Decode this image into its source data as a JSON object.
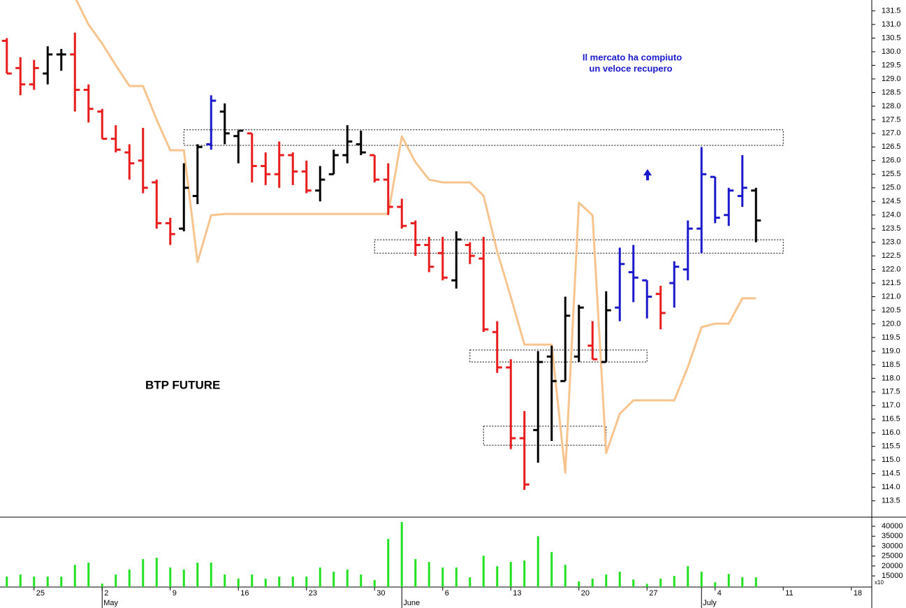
{
  "chart_data": {
    "type": "ohlc",
    "title": "BTP FUTURE",
    "annotations": [
      "Il mercato ha compiuto",
      "un veloce recupero"
    ],
    "categories": [
      null,
      null,
      "25",
      null,
      null,
      null,
      null,
      "2",
      null,
      null,
      null,
      null,
      "9",
      null,
      null,
      null,
      null,
      "16",
      null,
      null,
      null,
      null,
      "23",
      null,
      null,
      null,
      null,
      "30",
      null,
      null,
      null,
      null,
      "6",
      null,
      null,
      null,
      null,
      "13",
      null,
      null,
      null,
      null,
      "20",
      null,
      null,
      null,
      null,
      "27",
      null,
      null,
      null,
      null,
      "4",
      null,
      null,
      null,
      null,
      "11",
      null,
      null,
      null,
      null,
      "18",
      null
    ],
    "months": [
      null,
      null,
      null,
      null,
      null,
      null,
      null,
      "May",
      null,
      null,
      null,
      null,
      null,
      null,
      null,
      null,
      null,
      null,
      null,
      null,
      null,
      null,
      null,
      null,
      null,
      null,
      null,
      null,
      null,
      "June",
      null,
      null,
      null,
      null,
      null,
      null,
      null,
      null,
      null,
      null,
      null,
      null,
      null,
      null,
      null,
      null,
      null,
      null,
      null,
      null,
      null,
      "July",
      null,
      null,
      null,
      null,
      null,
      null,
      null,
      null,
      null,
      null,
      null,
      null
    ],
    "ylim": [
      112.9,
      131.9
    ],
    "yticks": [
      113.5,
      {
        "value": 114,
        "label": "114.0"
      },
      114.5,
      {
        "value": 115,
        "label": "115.0"
      },
      115.5,
      {
        "value": 116,
        "label": "116.0"
      },
      116.5,
      {
        "value": 117,
        "label": "117.0"
      },
      117.5,
      {
        "value": 118,
        "label": "118.0"
      },
      118.5,
      {
        "value": 119,
        "label": "119.0"
      },
      119.5,
      {
        "value": 120,
        "label": "120.0"
      },
      120.5,
      {
        "value": 121,
        "label": "121.0"
      },
      121.5,
      {
        "value": 122,
        "label": "122.0"
      },
      122.5,
      {
        "value": 123,
        "label": "123.0"
      },
      123.5,
      {
        "value": 124,
        "label": "124.0"
      },
      124.5,
      {
        "value": 125,
        "label": "125.0"
      },
      125.5,
      {
        "value": 126,
        "label": "126.0"
      },
      126.5,
      {
        "value": 127,
        "label": "127.0"
      },
      127.5,
      {
        "value": 128,
        "label": "128.0"
      },
      128.5,
      {
        "value": 129,
        "label": "129.0"
      },
      129.5,
      {
        "value": 130,
        "label": "130.0"
      },
      130.5,
      {
        "value": 131,
        "label": "131.0"
      },
      131.5
    ],
    "y2lim": [
      9400,
      44600
    ],
    "y2ticks": [
      15000,
      20000,
      25000,
      30000,
      35000,
      40000
    ],
    "y2_unit": "x10",
    "ohlc": {
      "open": [
        130.4,
        129.4,
        128.8,
        129.2,
        129.9,
        129.9,
        128.6,
        127.8,
        126.8,
        126.3,
        126.0,
        125.2,
        123.7,
        123.5,
        124.7,
        126.6,
        127.8,
        126.9,
        127.0,
        125.8,
        125.5,
        126.2,
        125.6,
        124.9,
        125.5,
        126.2,
        126.6,
        126.2,
        125.3,
        124.3,
        123.7,
        122.9,
        122.6,
        121.6,
        122.9,
        122.4,
        119.7,
        118.4,
        115.8,
        116.1,
        118.8,
        117.9,
        118.8,
        119.2,
        118.6,
        120.6,
        121.9,
        121.6,
        121.1,
        121.5,
        122.0,
        123.5,
        125.4,
        124.0,
        124.7,
        124.9,
        null,
        null,
        null,
        null,
        null,
        null,
        null,
        null
      ],
      "high": [
        130.5,
        129.8,
        129.7,
        130.2,
        130.1,
        130.7,
        128.8,
        127.9,
        127.3,
        126.6,
        127.2,
        125.3,
        123.9,
        125.9,
        126.6,
        128.4,
        128.1,
        127.1,
        127.0,
        126.3,
        126.7,
        126.3,
        126.0,
        125.8,
        126.4,
        127.3,
        127.1,
        126.2,
        125.9,
        124.6,
        123.8,
        123.2,
        123.2,
        123.4,
        123.0,
        123.2,
        120.1,
        118.7,
        116.8,
        119.0,
        119.2,
        121.0,
        120.7,
        120.1,
        121.2,
        122.8,
        122.9,
        121.6,
        121.4,
        122.3,
        123.8,
        126.5,
        125.4,
        125.0,
        126.2,
        125.0,
        null,
        null,
        null,
        null,
        null,
        null,
        null,
        null
      ],
      "low": [
        129.2,
        128.4,
        128.6,
        128.8,
        129.3,
        127.8,
        127.4,
        126.8,
        126.3,
        125.3,
        124.8,
        123.5,
        122.9,
        123.4,
        124.4,
        126.4,
        126.6,
        125.9,
        125.2,
        125.1,
        125.0,
        125.1,
        124.8,
        124.5,
        125.5,
        125.9,
        126.2,
        125.2,
        124.0,
        123.5,
        122.5,
        121.9,
        121.6,
        121.3,
        122.2,
        119.7,
        118.2,
        115.4,
        113.9,
        114.9,
        115.7,
        117.9,
        118.6,
        118.7,
        118.6,
        120.1,
        120.8,
        120.2,
        119.8,
        120.6,
        121.6,
        122.6,
        123.7,
        123.6,
        124.3,
        123.0,
        null,
        null,
        null,
        null,
        null,
        null,
        null,
        null
      ],
      "close": [
        129.2,
        128.8,
        129.4,
        129.9,
        129.9,
        128.6,
        127.9,
        126.8,
        126.4,
        125.9,
        125.0,
        123.7,
        123.3,
        125.0,
        126.5,
        128.2,
        127.0,
        127.1,
        125.8,
        125.5,
        126.2,
        125.6,
        124.9,
        125.3,
        126.2,
        126.7,
        126.3,
        125.3,
        124.3,
        123.6,
        122.9,
        122.1,
        121.7,
        123.1,
        122.5,
        119.8,
        118.4,
        115.8,
        114.1,
        118.6,
        117.9,
        120.3,
        120.6,
        118.7,
        120.5,
        122.2,
        121.7,
        121.0,
        120.4,
        122.1,
        123.5,
        125.5,
        123.9,
        124.9,
        125.0,
        123.8,
        null,
        null,
        null,
        null,
        null,
        null,
        null,
        null
      ],
      "colors": [
        "#e81c1c",
        "#e81c1c",
        "#e81c1c",
        "#000000",
        "#000000",
        "#e81c1c",
        "#e81c1c",
        "#e81c1c",
        "#e81c1c",
        "#e81c1c",
        "#e81c1c",
        "#e81c1c",
        "#e81c1c",
        "#000000",
        "#000000",
        "#1a1acc",
        "#000000",
        "#000000",
        "#e81c1c",
        "#e81c1c",
        "#e81c1c",
        "#e81c1c",
        "#e81c1c",
        "#000000",
        "#000000",
        "#000000",
        "#000000",
        "#e81c1c",
        "#e81c1c",
        "#e81c1c",
        "#e81c1c",
        "#e81c1c",
        "#e81c1c",
        "#000000",
        "#e81c1c",
        "#e81c1c",
        "#e81c1c",
        "#e81c1c",
        "#e81c1c",
        "#000000",
        "#000000",
        "#000000",
        "#000000",
        "#e81c1c",
        "#000000",
        "#1a1acc",
        "#1a1acc",
        "#1a1acc",
        "#e81c1c",
        "#1a1acc",
        "#1a1acc",
        "#1a1acc",
        "#1a1acc",
        "#1a1acc",
        "#1a1acc",
        "#000000",
        null,
        null,
        null,
        null,
        null,
        null,
        null,
        null
      ]
    },
    "line": {
      "color": "#f7c48e",
      "values": [
        null,
        null,
        null,
        null,
        null,
        132.0,
        131.0,
        130.3,
        129.5,
        128.74,
        128.74,
        127.5,
        126.38,
        126.38,
        122.27,
        123.99,
        124.04,
        124.04,
        124.04,
        124.04,
        124.04,
        124.04,
        124.04,
        124.04,
        124.04,
        124.04,
        124.04,
        124.04,
        124.04,
        126.89,
        125.94,
        125.3,
        125.2,
        125.2,
        125.2,
        124.71,
        122.66,
        120.99,
        119.24,
        119.24,
        119.24,
        114.54,
        124.45,
        123.99,
        115.26,
        116.7,
        117.19,
        117.19,
        117.19,
        117.19,
        118.42,
        119.88,
        120.01,
        120.01,
        120.94,
        120.94,
        null,
        null,
        null,
        null,
        null,
        null,
        null,
        null
      ]
    },
    "volume": {
      "color": "#22e022",
      "axis": "y2",
      "values": [
        14650,
        15700,
        14650,
        14650,
        14650,
        20600,
        21700,
        11100,
        15700,
        18200,
        23450,
        24150,
        19200,
        18200,
        21700,
        21700,
        15700,
        13600,
        15700,
        13600,
        14650,
        14650,
        14650,
        19200,
        17100,
        18200,
        15700,
        12900,
        33650,
        42100,
        23450,
        22000,
        19200,
        19200,
        14300,
        25200,
        19900,
        22000,
        22750,
        35000,
        27000,
        20600,
        12200,
        13600,
        15700,
        17100,
        13200,
        11000,
        13600,
        15000,
        19900,
        17100,
        11800,
        16000,
        14300,
        14300,
        null,
        null,
        null,
        null,
        null,
        null,
        null,
        null
      ]
    },
    "zones": [
      {
        "from": 13,
        "to": 57,
        "low": 126.56,
        "high": 127.13
      },
      {
        "from": 27,
        "to": 57,
        "low": 122.6,
        "high": 123.09
      },
      {
        "from": 34,
        "to": 47,
        "low": 118.6,
        "high": 119.04
      },
      {
        "from": 35,
        "to": 44,
        "low": 115.54,
        "high": 116.24
      }
    ]
  }
}
